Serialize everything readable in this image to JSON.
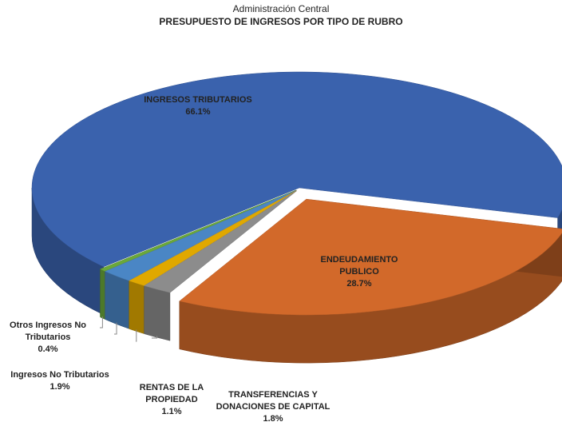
{
  "chart_data": {
    "type": "pie3d",
    "subtitle": "Administración Central",
    "title": "PRESUPUESTO DE INGRESOS POR TIPO DE RUBRO",
    "categories": [
      "ENDEUDAMIENTO PUBLICO",
      "TRANSFERENCIAS Y DONACIONES DE CAPITAL",
      "RENTAS DE LA PROPIEDAD",
      "Ingresos No Tributarios",
      "Otros Ingresos No Tributarios",
      "INGRESOS TRIBUTARIOS"
    ],
    "values": [
      28.7,
      1.8,
      1.1,
      1.9,
      0.4,
      66.1
    ],
    "value_labels": [
      "28.7%",
      "1.8%",
      "1.1%",
      "1.9%",
      "0.4%",
      "66.1%"
    ],
    "colors": [
      "#d2692a",
      "#8c8c8c",
      "#e0a800",
      "#4a86c5",
      "#6aa83a",
      "#3a62ad"
    ]
  }
}
